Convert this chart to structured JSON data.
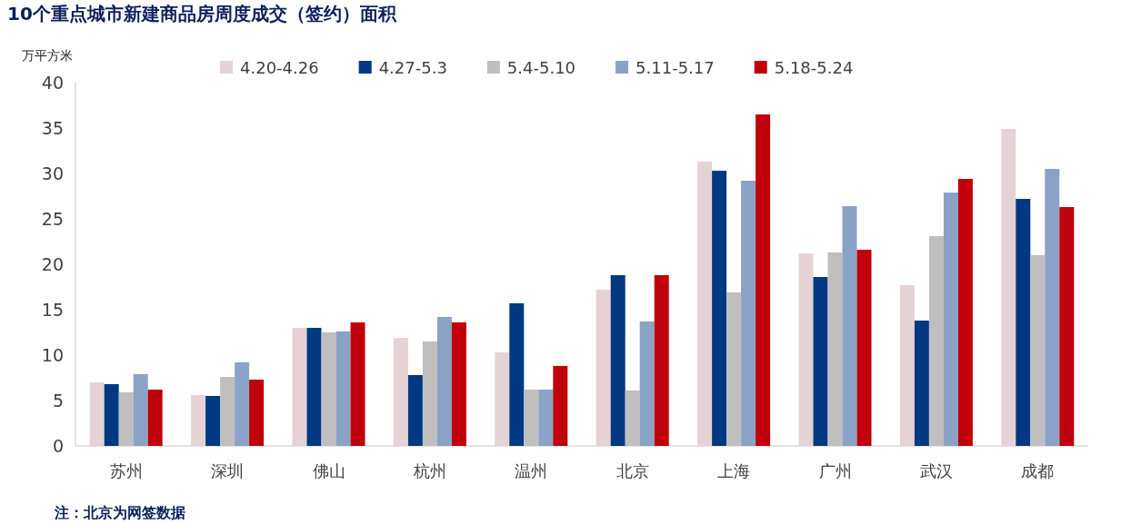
{
  "chart_data": {
    "type": "bar",
    "title": "10个重点城市新建商品房周度成交（签约）面积",
    "ylabel": "万平方米",
    "categories": [
      "苏州",
      "深圳",
      "佛山",
      "杭州",
      "温州",
      "北京",
      "上海",
      "广州",
      "武汉",
      "成都"
    ],
    "series": [
      {
        "name": "4.20-4.26",
        "color": "#e6d2d4",
        "values": [
          7.0,
          5.6,
          13.0,
          11.9,
          10.3,
          17.2,
          31.3,
          21.2,
          17.7,
          34.9
        ]
      },
      {
        "name": "4.27-5.3",
        "color": "#003882",
        "values": [
          6.8,
          5.5,
          13.0,
          7.8,
          15.7,
          18.8,
          30.3,
          18.6,
          13.8,
          27.2
        ]
      },
      {
        "name": "5.4-5.10",
        "color": "#bfbfbf",
        "values": [
          5.9,
          7.6,
          12.5,
          11.5,
          6.2,
          6.1,
          16.9,
          21.3,
          23.1,
          21.0
        ]
      },
      {
        "name": "5.11-5.17",
        "color": "#8aa2c6",
        "values": [
          7.9,
          9.2,
          12.6,
          14.2,
          6.2,
          13.7,
          29.2,
          26.4,
          27.9,
          30.5
        ]
      },
      {
        "name": "5.18-5.24",
        "color": "#c0000b",
        "values": [
          6.2,
          7.3,
          13.6,
          13.6,
          8.8,
          18.8,
          36.5,
          21.6,
          29.4,
          26.3
        ]
      }
    ],
    "ylim": [
      0,
      40
    ],
    "yticks": [
      0,
      5,
      10,
      15,
      20,
      25,
      30,
      35,
      40
    ],
    "grid": false,
    "legend": "top",
    "annotations": [
      "注：北京为网签数据"
    ]
  }
}
